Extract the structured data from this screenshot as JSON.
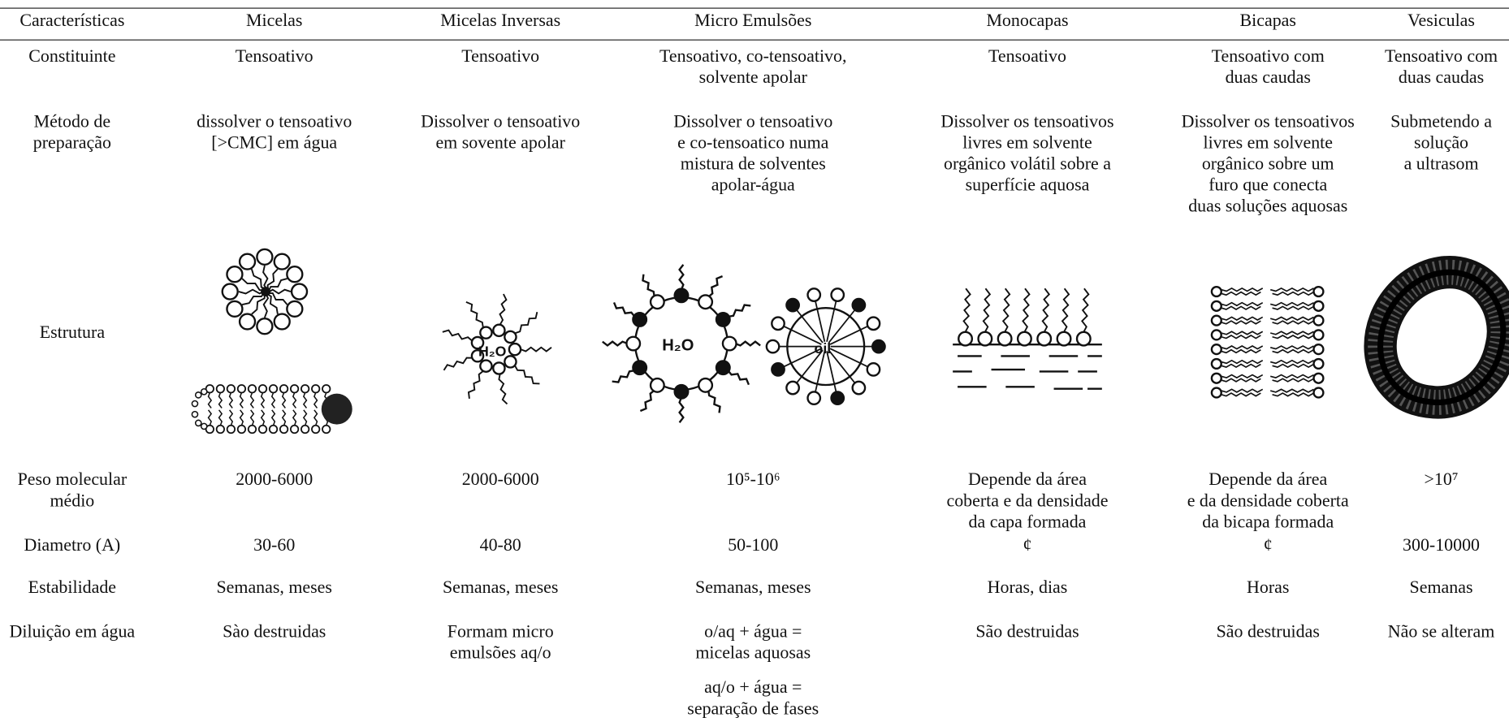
{
  "table": {
    "headers": [
      "Características",
      "Micelas",
      "Micelas Inversas",
      "Micro Emulsões",
      "Monocapas",
      "Bicapas",
      "Vesiculas"
    ],
    "rows": [
      {
        "label": "Constituinte",
        "cells": [
          "Tensoativo",
          "Tensoativo",
          "Tensoativo, co-tensoativo,\nsolvente apolar",
          "Tensoativo",
          "Tensoativo com\nduas caudas",
          "Tensoativo com\nduas caudas"
        ]
      },
      {
        "label": "Método de\npreparação",
        "cells": [
          "dissolver o tensoativo\n[>CMC] em água",
          "Dissolver o tensoativo\nem sovente apolar",
          "Dissolver o tensoativo\ne co-tensoatico numa\nmistura de solventes\napolar-água",
          "Dissolver os tensoativos\nlivres em solvente\norgânico volátil sobre a\nsuperfície aquosa",
          "Dissolver os tensoativos\nlivres em solvente\norgânico sobre um\nfuro que conecta\nduas soluções aquosas",
          "Submetendo a\nsolução\na ultrasom"
        ]
      },
      {
        "label": "Estrutura"
      },
      {
        "label": "Peso molecular\nmédio",
        "cells": [
          "2000-6000",
          "2000-6000",
          "10⁵-10⁶",
          "Depende da área\ncoberta e da densidade\nda capa formada",
          "Depende da área\ne da densidade coberta\nda bicapa formada",
          ">10⁷"
        ]
      },
      {
        "label": "Diametro (A)",
        "cells": [
          "30-60",
          "40-80",
          "50-100",
          "¢",
          "¢",
          "300-10000"
        ]
      },
      {
        "label": "Estabilidade",
        "cells": [
          "Semanas, meses",
          "Semanas, meses",
          "Semanas, meses",
          "Horas, dias",
          "Horas",
          "Semanas"
        ]
      },
      {
        "label": "Diluição em água",
        "cells": [
          "Sào destruidas",
          "Formam micro\nemulsões aq/o",
          [
            "o/aq + água =\nmicelas aquosas",
            "aq/o + água =\nseparação de fases"
          ],
          "São destruidas",
          "São destruidas",
          "Não se alteram"
        ]
      }
    ]
  }
}
